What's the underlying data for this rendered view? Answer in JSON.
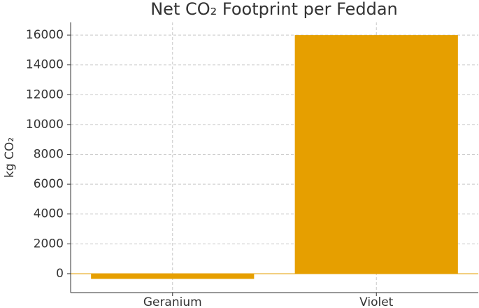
{
  "chart_data": {
    "type": "bar",
    "title": "Net CO₂ Footprint per Feddan",
    "ylabel": "kg CO₂",
    "categories": [
      "Geranium",
      "Violet"
    ],
    "values": [
      -350,
      16000
    ],
    "color": "#e69f00",
    "ylim": [
      -1270,
      16850
    ],
    "yticks": [
      0,
      2000,
      4000,
      6000,
      8000,
      10000,
      12000,
      14000,
      16000
    ],
    "grid": true
  }
}
